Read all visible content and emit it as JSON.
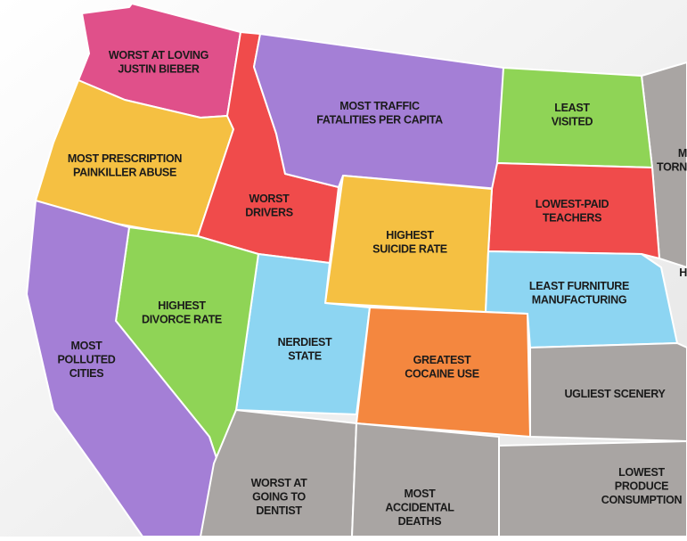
{
  "regions": [
    {
      "label": [
        "WORST AT LOVING",
        "JUSTIN BIEBER"
      ]
    },
    {
      "label": [
        "MOST PRESCRIPTION",
        "PAINKILLER ABUSE"
      ]
    },
    {
      "label": [
        "WORST",
        "DRIVERS"
      ]
    },
    {
      "label": [
        "MOST TRAFFIC",
        "FATALITIES PER CAPITA"
      ]
    },
    {
      "label": [
        "LEAST",
        "VISITED"
      ]
    },
    {
      "label": [
        "LOWEST-PAID",
        "TEACHERS"
      ]
    },
    {
      "label": [
        "HIGHEST",
        "SUICIDE RATE"
      ]
    },
    {
      "label": [
        "LEAST FURNITURE",
        "MANUFACTURING"
      ]
    },
    {
      "label": [
        "HIGHEST",
        "DIVORCE RATE"
      ]
    },
    {
      "label": [
        "MOST",
        "POLLUTED",
        "CITIES"
      ]
    },
    {
      "label": [
        "NERDIEST",
        "STATE"
      ]
    },
    {
      "label": [
        "GREATEST",
        "COCAINE USE"
      ]
    },
    {
      "label": [
        "UGLIEST SCENERY"
      ]
    },
    {
      "label": [
        "WORST AT",
        "GOING TO",
        "DENTIST"
      ]
    },
    {
      "label": [
        "MOST",
        "ACCIDENTAL",
        "DEATHS"
      ]
    },
    {
      "label": [
        "LOWEST",
        "PRODUCE",
        "CONSUMPTION"
      ]
    },
    {
      "label": [
        "M",
        "TORN"
      ]
    },
    {
      "label": [
        "H"
      ]
    }
  ]
}
